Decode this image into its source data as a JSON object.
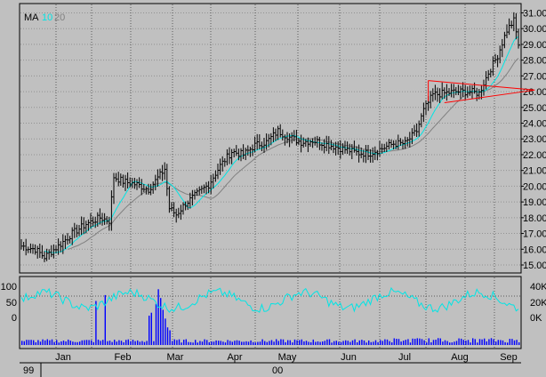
{
  "chart_data": [
    {
      "type": "line",
      "name": "price",
      "legend": {
        "label": "MA",
        "periods": [
          "10",
          "20"
        ],
        "colors": [
          "#00e5e5",
          "#808080"
        ]
      },
      "ylim": [
        14.8,
        31.4
      ],
      "yticks": [
        "15.00",
        "16.00",
        "17.00",
        "18.00",
        "19.00",
        "20.00",
        "21.00",
        "22.00",
        "23.00",
        "24.00",
        "25.00",
        "26.00",
        "27.00",
        "28.00",
        "29.00",
        "30.00",
        "31.00"
      ],
      "xlabels": [
        "Jan",
        "Feb",
        "Mar",
        "Apr",
        "May",
        "Jun",
        "Jul",
        "Aug",
        "Sep"
      ],
      "yearlabels": [
        "99",
        "00"
      ],
      "grid": true,
      "close_anchors": [
        [
          0,
          16.2
        ],
        [
          6,
          16.0
        ],
        [
          10,
          15.5
        ],
        [
          16,
          16.2
        ],
        [
          22,
          17.0
        ],
        [
          28,
          17.6
        ],
        [
          34,
          18.0
        ],
        [
          38,
          17.8
        ],
        [
          40,
          20.6
        ],
        [
          44,
          20.3
        ],
        [
          50,
          20.1
        ],
        [
          55,
          19.8
        ],
        [
          60,
          20.7
        ],
        [
          62,
          21.1
        ],
        [
          64,
          18.6
        ],
        [
          67,
          18.2
        ],
        [
          71,
          18.9
        ],
        [
          76,
          19.5
        ],
        [
          81,
          20.1
        ],
        [
          86,
          21.3
        ],
        [
          91,
          22.2
        ],
        [
          96,
          22.0
        ],
        [
          101,
          22.6
        ],
        [
          106,
          22.8
        ],
        [
          111,
          23.5
        ],
        [
          116,
          23.1
        ],
        [
          121,
          22.8
        ],
        [
          126,
          22.9
        ],
        [
          131,
          22.7
        ],
        [
          136,
          22.5
        ],
        [
          141,
          22.3
        ],
        [
          146,
          22.1
        ],
        [
          151,
          22.1
        ],
        [
          156,
          22.4
        ],
        [
          161,
          22.7
        ],
        [
          166,
          22.7
        ],
        [
          171,
          23.5
        ],
        [
          174,
          24.8
        ],
        [
          178,
          25.8
        ],
        [
          183,
          25.9
        ],
        [
          188,
          26.0
        ],
        [
          194,
          26.0
        ],
        [
          198,
          25.9
        ],
        [
          202,
          27.2
        ],
        [
          206,
          28.3
        ],
        [
          210,
          29.9
        ],
        [
          213,
          30.5
        ],
        [
          215,
          29.0
        ]
      ],
      "triangle": {
        "upper": [
          [
            176,
            26.7
          ],
          [
            222,
            26.1
          ]
        ],
        "lower": [
          [
            183,
            25.3
          ],
          [
            222,
            26.1
          ]
        ]
      },
      "ma_colors": {
        "ma10": "#00e5e5",
        "ma20": "#808080"
      }
    },
    {
      "type": "line",
      "name": "oscillator",
      "yticks": [
        "100",
        "50",
        "0"
      ],
      "ylim": [
        0,
        100
      ]
    },
    {
      "type": "bar",
      "name": "volume",
      "yticks": [
        "40K",
        "20K",
        "0K"
      ],
      "ylim": [
        0,
        40000
      ],
      "spikes": [
        [
          32,
          0.75
        ],
        [
          36,
          0.85
        ],
        [
          55,
          0.5
        ],
        [
          56,
          0.55
        ],
        [
          58,
          0.7
        ],
        [
          59,
          0.95
        ],
        [
          60,
          0.8
        ],
        [
          61,
          0.6
        ],
        [
          62,
          0.45
        ],
        [
          63,
          0.3
        ],
        [
          64,
          0.25
        ]
      ]
    }
  ],
  "colors": {
    "background": "#c0c0c0",
    "grid": "#5a5a5a",
    "price": "#000000",
    "osc": "#00e5e5",
    "volume": "#0000ff",
    "triangle": "#ff0000"
  }
}
